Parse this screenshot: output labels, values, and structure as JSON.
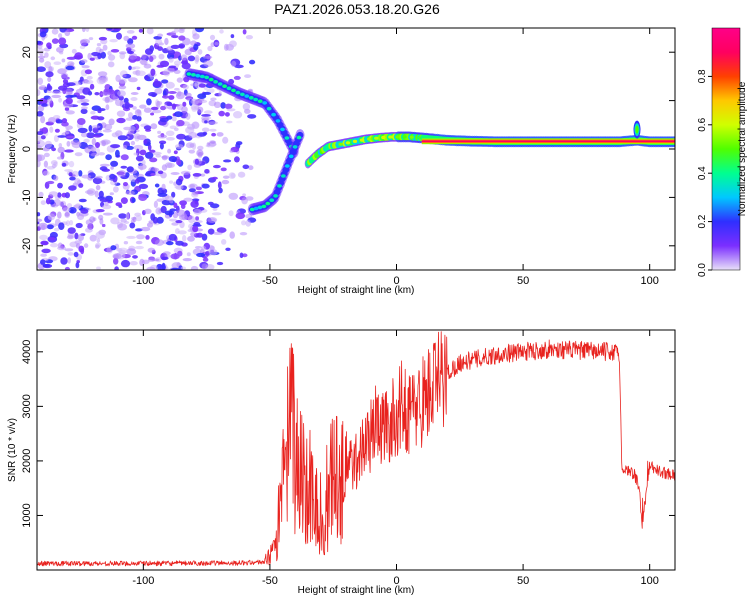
{
  "title": "PAZ1.2026.053.18.20.G26",
  "colors": {
    "snr_line": "#e8221e",
    "spectrogram_noise": "#7a1fe6",
    "frame": "#000000"
  },
  "chart_data": [
    {
      "type": "heatmap",
      "name": "spectrogram",
      "xlabel": "Height of straight line (km)",
      "ylabel": "Frequency (Hz)",
      "xlim": [
        -142,
        110
      ],
      "ylim": [
        -25,
        25
      ],
      "xticks": [
        -100,
        -50,
        0,
        50,
        100
      ],
      "yticks": [
        -20,
        -10,
        0,
        10,
        20
      ],
      "colorbar": {
        "label": "Normalized spectral amplitude",
        "range": [
          0,
          1
        ],
        "ticks": [
          0.0,
          0.2,
          0.4,
          0.6,
          0.8
        ],
        "colormap": [
          "#e8e0f8",
          "#7b2fff",
          "#2f2fff",
          "#00c8ff",
          "#00ff90",
          "#50ff00",
          "#d0ff00",
          "#ffc800",
          "#ff4000",
          "#ff0060",
          "#ff0088"
        ]
      },
      "noise_region_km": [
        -142,
        -57
      ],
      "trace_upper": {
        "height_km": [
          -82,
          -75,
          -68,
          -62,
          -57,
          -52,
          -47,
          -43,
          -40
        ],
        "freq_hz": [
          15.5,
          14.8,
          13,
          11.5,
          10.5,
          9.5,
          6,
          2,
          -1
        ]
      },
      "trace_lower": {
        "height_km": [
          -57,
          -52,
          -48,
          -45,
          -42,
          -40,
          -38
        ],
        "freq_hz": [
          -12.5,
          -11.8,
          -10,
          -6,
          -2,
          0.5,
          3
        ]
      },
      "trace_main": {
        "height_km": [
          -35,
          -31,
          -27,
          -22,
          -17,
          -12,
          -7,
          -2,
          5,
          12,
          20,
          30,
          40,
          50,
          60,
          70,
          80,
          88,
          95,
          100,
          105,
          110
        ],
        "freq_hz": [
          -3,
          -1,
          0.5,
          1,
          1.5,
          2,
          2.3,
          2.5,
          2.5,
          2.2,
          1.8,
          1.6,
          1.5,
          1.5,
          1.5,
          1.5,
          1.5,
          1.5,
          1.8,
          1.5,
          1.5,
          1.5
        ]
      }
    },
    {
      "type": "line",
      "name": "snr",
      "xlabel": "Height of straight line (km)",
      "ylabel": "SNR (10 * v/v)",
      "xlim": [
        -142,
        110
      ],
      "ylim": [
        0,
        4400
      ],
      "xticks": [
        -100,
        -50,
        0,
        50,
        100
      ],
      "yticks": [
        1000,
        2000,
        3000,
        4000
      ],
      "series": [
        {
          "name": "SNR",
          "x": [
            -142,
            -120,
            -100,
            -80,
            -60,
            -52,
            -48,
            -45,
            -43,
            -41,
            -39,
            -37,
            -35,
            -33,
            -31,
            -29,
            -27,
            -25,
            -23,
            -20,
            -17,
            -14,
            -11,
            -8,
            -5,
            -2,
            2,
            6,
            10,
            15,
            20,
            25,
            30,
            35,
            40,
            45,
            50,
            55,
            60,
            65,
            70,
            75,
            80,
            85,
            88,
            89,
            90,
            92,
            94,
            96,
            97,
            98,
            100,
            104,
            110
          ],
          "values": [
            120,
            120,
            120,
            125,
            130,
            150,
            350,
            1400,
            2200,
            2600,
            1800,
            2000,
            1200,
            1700,
            900,
            600,
            1100,
            2000,
            1500,
            2000,
            1900,
            2200,
            2400,
            2700,
            2600,
            2700,
            3000,
            2900,
            3100,
            3400,
            3600,
            3800,
            3850,
            3900,
            3950,
            3980,
            4000,
            4020,
            4050,
            4040,
            4030,
            4020,
            4010,
            4000,
            3950,
            1900,
            1850,
            1800,
            1750,
            1500,
            700,
            1200,
            1900,
            1800,
            1750
          ]
        }
      ]
    }
  ]
}
